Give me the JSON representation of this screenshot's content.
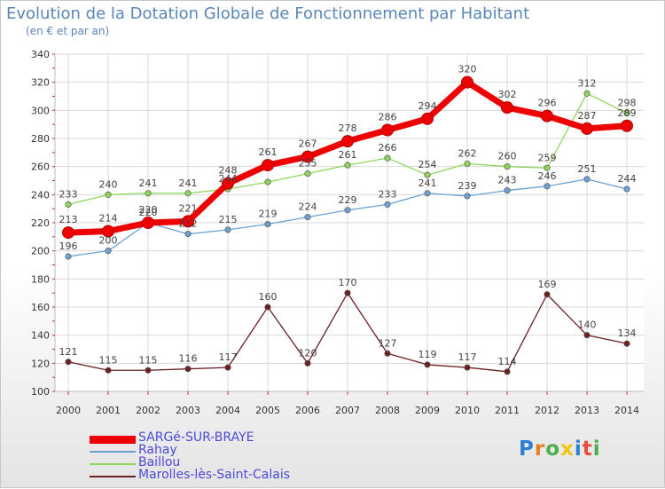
{
  "chart_data": {
    "type": "line",
    "title": "Evolution de la Dotation Globale de Fonctionnement par Habitant",
    "subtitle": "(en € et par an)",
    "xlabel": "",
    "ylabel": "",
    "ylim": [
      100,
      340
    ],
    "yticks": [
      "100",
      "120",
      "140",
      "160",
      "180",
      "200",
      "220",
      "240",
      "260",
      "280",
      "300",
      "320",
      "340"
    ],
    "grid": true,
    "categories": [
      "2000",
      "2001",
      "2002",
      "2003",
      "2004",
      "2005",
      "2006",
      "2007",
      "2008",
      "2009",
      "2010",
      "2011",
      "2012",
      "2013",
      "2014"
    ],
    "series": [
      {
        "name": "Marolles-lès-Saint-Calais",
        "color": "#6b1f1f",
        "values": [
          121,
          115,
          115,
          116,
          117,
          160,
          120,
          170,
          127,
          119,
          117,
          114,
          169,
          140,
          134
        ],
        "labels": [
          "121",
          "115",
          "115",
          "116",
          "117",
          "160",
          "120",
          "170",
          "127",
          "119",
          "117",
          "114",
          "169",
          "140",
          "134"
        ]
      },
      {
        "name": "Baillou",
        "color": "#8fd65a",
        "values": [
          233,
          240,
          241,
          241,
          244,
          249,
          255,
          261,
          266,
          254,
          262,
          260,
          259,
          312,
          298
        ],
        "labels": [
          "233",
          "240",
          "241",
          "241",
          "244",
          "",
          "255",
          "261",
          "266",
          "254",
          "262",
          "260",
          "259",
          "312",
          "298"
        ]
      },
      {
        "name": "Rahay",
        "color": "#6aa2d4",
        "values": [
          196,
          200,
          220,
          212,
          215,
          219,
          224,
          229,
          233,
          241,
          239,
          243,
          246,
          251,
          244
        ],
        "labels": [
          "196",
          "200",
          "220",
          "212",
          "215",
          "219",
          "224",
          "229",
          "233",
          "241",
          "239",
          "243",
          "246",
          "251",
          "244"
        ]
      },
      {
        "name": "SARGé-SUR-BRAYE",
        "color": "#ee0000",
        "values": [
          213,
          214,
          220,
          221,
          248,
          261,
          267,
          278,
          286,
          294,
          320,
          302,
          296,
          287,
          289
        ],
        "labels": [
          "213",
          "214",
          "220",
          "221",
          "248",
          "261",
          "267",
          "278",
          "286",
          "294",
          "320",
          "302",
          "296",
          "287",
          "289"
        ]
      }
    ],
    "legend": [
      "SARGé-SUR-BRAYE",
      "Rahay",
      "Baillou",
      "Marolles-lès-Saint-Calais"
    ],
    "legend_position": "bottom-left"
  },
  "legend_items": [
    {
      "label": "SARGé-SUR-BRAYE",
      "color": "#ee0000"
    },
    {
      "label": "Rahay",
      "color": "#6aa2d4"
    },
    {
      "label": "Baillou",
      "color": "#8fd65a"
    },
    {
      "label": "Marolles-lès-Saint-Calais",
      "color": "#6b1f1f"
    }
  ],
  "logo": {
    "letters": [
      "P",
      "r",
      "o",
      "x",
      "i",
      "t",
      "i"
    ],
    "colors": [
      "#2c7fd2",
      "#e67e22",
      "#4caf50",
      "#f1c40f",
      "#2c7fd2",
      "#e74c3c",
      "#4caf50"
    ]
  }
}
